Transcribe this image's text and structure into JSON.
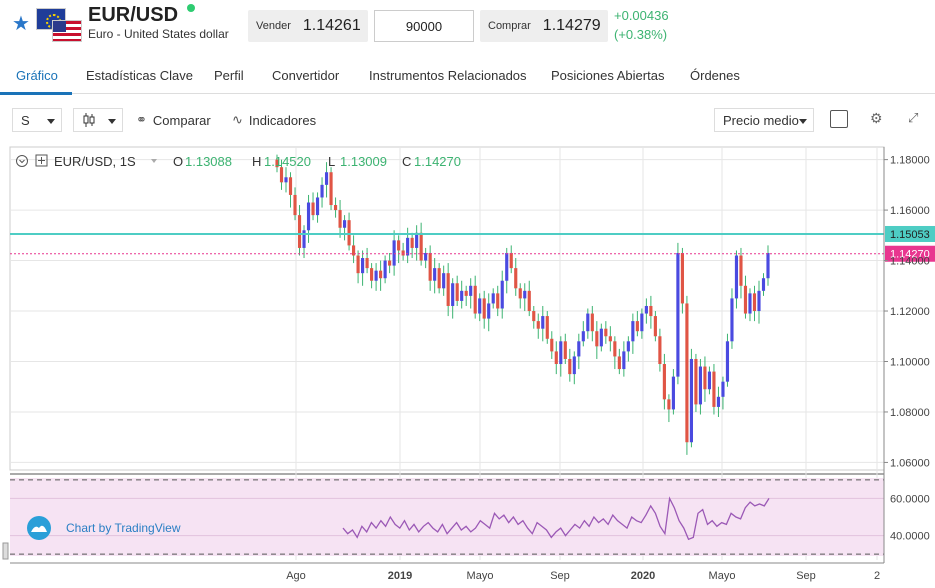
{
  "header": {
    "symbol": "EUR/USD",
    "name": "Euro - United States dollar",
    "favorite_icon": "star-icon",
    "sell_label": "Vender",
    "sell_price": "1.14261",
    "amount": "90000",
    "buy_label": "Comprar",
    "buy_price": "1.14279",
    "change_abs": "+0.00436",
    "change_pct": "(+0.38%)",
    "up_color": "#3cb371",
    "accent_color": "#1a73b8"
  },
  "tabs": [
    {
      "label": "Gráfico",
      "active": true
    },
    {
      "label": "Estadísticas Clave"
    },
    {
      "label": "Perfil"
    },
    {
      "label": "Convertidor"
    },
    {
      "label": "Instrumentos Relacionados"
    },
    {
      "label": "Posiciones Abiertas"
    },
    {
      "label": "Órdenes"
    }
  ],
  "toolbar": {
    "interval": "S",
    "chart_type_icon": "candles-icon",
    "compare_label": "Comparar",
    "indicators_label": "Indicadores",
    "price_mode": "Precio medio"
  },
  "legend": {
    "symbol_interval": "EUR/USD, 1S",
    "o_label": "O",
    "o_value": "1.13088",
    "h_label": "H",
    "h_value": "1.14520",
    "l_label": "L",
    "l_value": "1.13009",
    "c_label": "C",
    "c_value": "1.14270"
  },
  "watermark": "Chart by TradingView",
  "chart_data": {
    "type": "candlestick",
    "y_ticks": [
      "1.18000",
      "1.16000",
      "1.14000",
      "1.12000",
      "1.10000",
      "1.08000",
      "1.06000"
    ],
    "y_tick_values": [
      1.18,
      1.16,
      1.14,
      1.12,
      1.1,
      1.08,
      1.06
    ],
    "ylim": [
      1.057,
      1.185
    ],
    "x_ticks": [
      "Ago",
      "2019",
      "Mayo",
      "Sep",
      "2020",
      "Mayo",
      "Sep",
      "2"
    ],
    "bid_line": {
      "value": 1.15053,
      "label": "1.15053",
      "color": "#4ecdc4"
    },
    "last_line": {
      "value": 1.1427,
      "label": "1.14270",
      "color": "#e8368f"
    },
    "up_color": "#4a4ae0",
    "down_color": "#e05545",
    "wick_color": "#3cb371",
    "closes": [
      1.177,
      1.171,
      1.173,
      1.166,
      1.158,
      1.145,
      1.152,
      1.163,
      1.158,
      1.165,
      1.17,
      1.175,
      1.162,
      1.16,
      1.153,
      1.156,
      1.146,
      1.142,
      1.135,
      1.141,
      1.137,
      1.132,
      1.136,
      1.133,
      1.14,
      1.138,
      1.148,
      1.144,
      1.142,
      1.149,
      1.145,
      1.151,
      1.14,
      1.143,
      1.132,
      1.137,
      1.129,
      1.135,
      1.122,
      1.131,
      1.124,
      1.128,
      1.126,
      1.13,
      1.119,
      1.125,
      1.117,
      1.123,
      1.127,
      1.121,
      1.132,
      1.143,
      1.137,
      1.129,
      1.125,
      1.128,
      1.12,
      1.116,
      1.113,
      1.118,
      1.109,
      1.104,
      1.099,
      1.108,
      1.101,
      1.095,
      1.102,
      1.108,
      1.112,
      1.119,
      1.112,
      1.106,
      1.113,
      1.11,
      1.108,
      1.102,
      1.097,
      1.104,
      1.108,
      1.116,
      1.112,
      1.119,
      1.122,
      1.118,
      1.11,
      1.099,
      1.085,
      1.081,
      1.094,
      1.143,
      1.123,
      1.068,
      1.101,
      1.083,
      1.098,
      1.089,
      1.096,
      1.082,
      1.086,
      1.092,
      1.108,
      1.125,
      1.142,
      1.13,
      1.119,
      1.127,
      1.12,
      1.128,
      1.133,
      1.143
    ],
    "indicator": {
      "type": "line",
      "color": "#9b59b6",
      "y_ticks": [
        "60.0000",
        "40.0000"
      ],
      "y_tick_values": [
        60,
        40
      ],
      "ylim": [
        29,
        71
      ],
      "upper_band": 70,
      "lower_band": 30,
      "values": [
        44,
        41,
        43,
        39,
        45,
        42,
        47,
        44,
        48,
        45,
        50,
        46,
        44,
        48,
        43,
        46,
        42,
        45,
        47,
        44,
        42,
        46,
        41,
        44,
        47,
        43,
        45,
        42,
        44,
        48,
        46,
        44,
        52,
        49,
        51,
        47,
        50,
        46,
        48,
        44,
        41,
        47,
        45,
        43,
        39,
        42,
        44,
        40,
        43,
        46,
        44,
        48,
        45,
        50,
        47,
        49,
        46,
        51,
        48,
        46,
        44,
        50,
        48,
        47,
        51,
        56,
        52,
        45,
        41,
        60,
        55,
        48,
        44,
        38,
        39,
        52,
        54,
        46,
        48,
        45,
        47,
        46,
        52,
        50,
        49,
        55,
        58,
        56,
        57,
        56,
        60
      ]
    }
  }
}
